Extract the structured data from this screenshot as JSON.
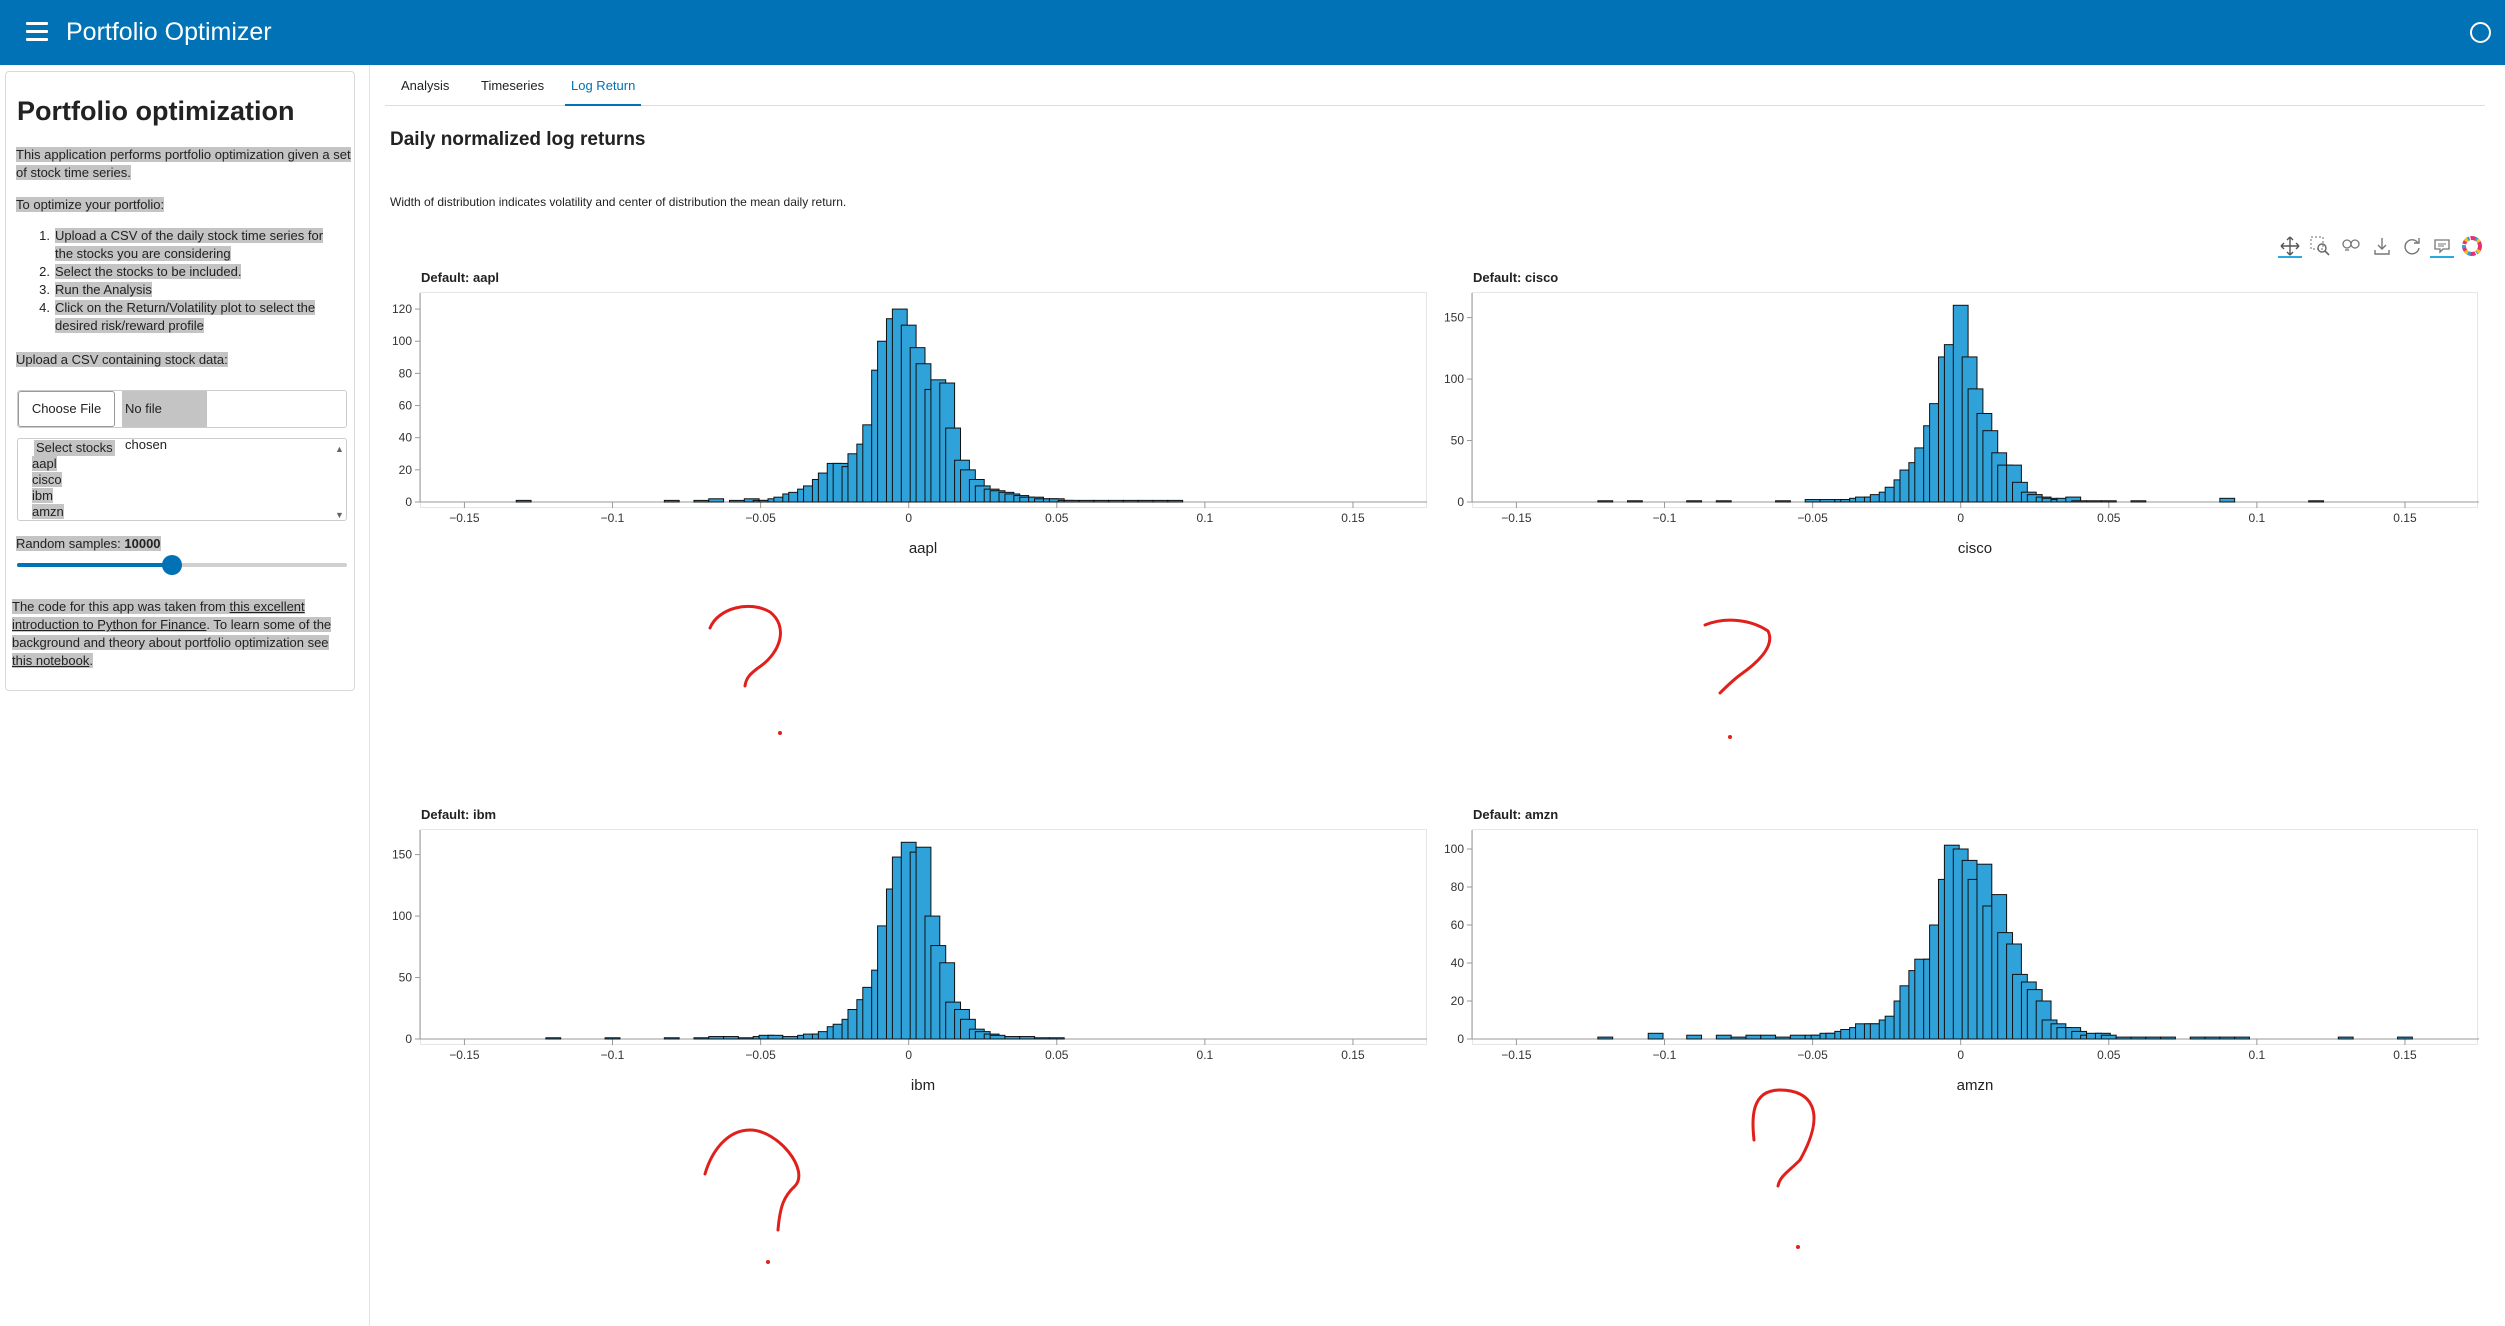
{
  "header": {
    "title": "Portfolio Optimizer"
  },
  "sidebar": {
    "title": "Portfolio optimization",
    "description": "This application performs portfolio optimization given a set of stock time series.",
    "optimize_label": "To optimize your portfolio:",
    "steps": [
      {
        "num": "1.",
        "text": "Upload a CSV of the daily stock time series for the stocks you are considering"
      },
      {
        "num": "2.",
        "text": "Select the stocks to be included."
      },
      {
        "num": "3.",
        "text": "Run the Analysis"
      },
      {
        "num": "4.",
        "text": "Click on the Return/Volatility plot to select the desired risk/reward profile"
      }
    ],
    "upload_label": "Upload a CSV containing stock data:",
    "file_button": "Choose File",
    "file_status": "No file chosen",
    "select_label": "Select stocks",
    "stocks": [
      "aapl",
      "cisco",
      "ibm",
      "amzn"
    ],
    "samples_label": "Random samples: ",
    "samples_value": "10000",
    "samples_fraction": 0.47,
    "code_text_1": "The code for this app was taken from ",
    "code_link_1": "this excellent introduction to Python for Finance",
    "code_text_2": ". To learn some of the background and theory about portfolio optimization see ",
    "code_link_2": "this notebook",
    "code_text_3": "."
  },
  "tabs": [
    {
      "label": "Analysis"
    },
    {
      "label": "Timeseries"
    },
    {
      "label": "Log Return",
      "active": true
    }
  ],
  "main": {
    "heading": "Daily normalized log returns",
    "description": "Width of distribution indicates volatility and center of distribution the mean daily return."
  },
  "toolbar": [
    "pan-icon",
    "box-zoom-icon",
    "wheel-zoom-icon",
    "save-icon",
    "reset-icon",
    "hover-icon",
    "bokeh-logo-icon"
  ],
  "colors": {
    "header": "#0072b5",
    "bar_fill": "#30a2da",
    "annotation": "#e0201b"
  },
  "chart_data": [
    {
      "type": "bar",
      "title": "Default: aapl",
      "xlabel": "aapl",
      "xlim": [
        -0.165,
        0.175
      ],
      "ylim": [
        0,
        130
      ],
      "xticks": [
        -0.15,
        -0.1,
        -0.05,
        0,
        0.05,
        0.1,
        0.15
      ],
      "yticks": [
        0,
        20,
        40,
        60,
        80,
        100,
        120
      ],
      "x": [
        -0.13,
        -0.08,
        -0.07,
        -0.065,
        -0.058,
        -0.053,
        -0.05,
        -0.048,
        -0.045,
        -0.043,
        -0.04,
        -0.038,
        -0.035,
        -0.033,
        -0.03,
        -0.028,
        -0.025,
        -0.023,
        -0.02,
        -0.018,
        -0.015,
        -0.013,
        -0.01,
        -0.008,
        -0.005,
        -0.003,
        0,
        0.003,
        0.005,
        0.008,
        0.01,
        0.013,
        0.015,
        0.018,
        0.02,
        0.023,
        0.025,
        0.028,
        0.03,
        0.033,
        0.035,
        0.038,
        0.04,
        0.043,
        0.045,
        0.048,
        0.05,
        0.053,
        0.055,
        0.06,
        0.065,
        0.07,
        0.075,
        0.08,
        0.085,
        0.09
      ],
      "values": [
        1,
        1,
        1,
        2,
        1,
        2,
        1,
        1,
        2,
        3,
        5,
        6,
        8,
        10,
        14,
        18,
        24,
        24,
        22,
        30,
        36,
        48,
        82,
        100,
        114,
        120,
        110,
        96,
        86,
        70,
        76,
        74,
        46,
        26,
        20,
        14,
        10,
        8,
        7,
        6,
        5,
        4,
        3,
        3,
        2,
        2,
        2,
        1,
        1,
        1,
        1,
        1,
        1,
        1,
        1,
        1
      ]
    },
    {
      "type": "bar",
      "title": "Default: cisco",
      "xlabel": "cisco",
      "xlim": [
        -0.165,
        0.175
      ],
      "ylim": [
        0,
        170
      ],
      "xticks": [
        -0.15,
        -0.1,
        -0.05,
        0,
        0.05,
        0.1,
        0.15
      ],
      "yticks": [
        0,
        50,
        100,
        150
      ],
      "x": [
        -0.12,
        -0.11,
        -0.09,
        -0.08,
        -0.06,
        -0.05,
        -0.045,
        -0.04,
        -0.038,
        -0.035,
        -0.033,
        -0.03,
        -0.028,
        -0.025,
        -0.023,
        -0.02,
        -0.018,
        -0.015,
        -0.013,
        -0.01,
        -0.008,
        -0.005,
        -0.003,
        0,
        0.003,
        0.005,
        0.008,
        0.01,
        0.013,
        0.015,
        0.018,
        0.02,
        0.023,
        0.025,
        0.028,
        0.03,
        0.033,
        0.035,
        0.038,
        0.04,
        0.045,
        0.05,
        0.06,
        0.09,
        0.12
      ],
      "values": [
        1,
        1,
        1,
        1,
        1,
        2,
        2,
        2,
        2,
        3,
        4,
        4,
        6,
        8,
        12,
        18,
        26,
        32,
        44,
        62,
        80,
        118,
        128,
        160,
        118,
        92,
        72,
        58,
        40,
        30,
        30,
        16,
        8,
        6,
        4,
        3,
        2,
        3,
        4,
        1,
        1,
        1,
        1,
        3,
        1
      ]
    },
    {
      "type": "bar",
      "title": "Default: ibm",
      "xlabel": "ibm",
      "xlim": [
        -0.165,
        0.175
      ],
      "ylim": [
        0,
        170
      ],
      "xticks": [
        -0.15,
        -0.1,
        -0.05,
        0,
        0.05,
        0.1,
        0.15
      ],
      "yticks": [
        0,
        50,
        100,
        150
      ],
      "x": [
        -0.12,
        -0.1,
        -0.08,
        -0.07,
        -0.065,
        -0.06,
        -0.055,
        -0.05,
        -0.048,
        -0.045,
        -0.04,
        -0.035,
        -0.033,
        -0.03,
        -0.028,
        -0.025,
        -0.023,
        -0.02,
        -0.018,
        -0.015,
        -0.013,
        -0.01,
        -0.008,
        -0.005,
        -0.003,
        0,
        0.003,
        0.005,
        0.008,
        0.01,
        0.013,
        0.015,
        0.018,
        0.02,
        0.023,
        0.025,
        0.028,
        0.03,
        0.035,
        0.04,
        0.045,
        0.05
      ],
      "values": [
        1,
        1,
        1,
        1,
        2,
        2,
        1,
        2,
        3,
        3,
        2,
        3,
        4,
        4,
        6,
        10,
        12,
        16,
        24,
        32,
        42,
        56,
        92,
        122,
        148,
        160,
        152,
        156,
        100,
        76,
        62,
        30,
        24,
        16,
        8,
        6,
        4,
        3,
        2,
        2,
        1,
        1
      ]
    },
    {
      "type": "bar",
      "title": "Default: amzn",
      "xlabel": "amzn",
      "xlim": [
        -0.165,
        0.175
      ],
      "ylim": [
        0,
        110
      ],
      "xticks": [
        -0.15,
        -0.1,
        -0.05,
        0,
        0.05,
        0.1,
        0.15
      ],
      "yticks": [
        0,
        20,
        40,
        60,
        80,
        100
      ],
      "x": [
        -0.12,
        -0.103,
        -0.09,
        -0.08,
        -0.075,
        -0.07,
        -0.065,
        -0.06,
        -0.055,
        -0.05,
        -0.048,
        -0.045,
        -0.043,
        -0.04,
        -0.038,
        -0.035,
        -0.033,
        -0.03,
        -0.028,
        -0.025,
        -0.023,
        -0.02,
        -0.018,
        -0.015,
        -0.013,
        -0.01,
        -0.008,
        -0.005,
        -0.003,
        0,
        0.003,
        0.005,
        0.008,
        0.01,
        0.013,
        0.015,
        0.018,
        0.02,
        0.023,
        0.025,
        0.028,
        0.03,
        0.033,
        0.035,
        0.038,
        0.04,
        0.043,
        0.045,
        0.048,
        0.05,
        0.055,
        0.06,
        0.065,
        0.07,
        0.08,
        0.085,
        0.09,
        0.095,
        0.13,
        0.15
      ],
      "values": [
        1,
        3,
        2,
        2,
        1,
        2,
        2,
        1,
        2,
        2,
        2,
        3,
        3,
        4,
        5,
        6,
        8,
        8,
        8,
        10,
        12,
        20,
        28,
        36,
        42,
        42,
        60,
        84,
        102,
        100,
        94,
        84,
        92,
        70,
        76,
        56,
        50,
        34,
        30,
        26,
        20,
        10,
        8,
        6,
        6,
        4,
        2,
        3,
        3,
        2,
        1,
        1,
        1,
        1,
        1,
        1,
        1,
        1,
        1,
        1
      ]
    }
  ]
}
